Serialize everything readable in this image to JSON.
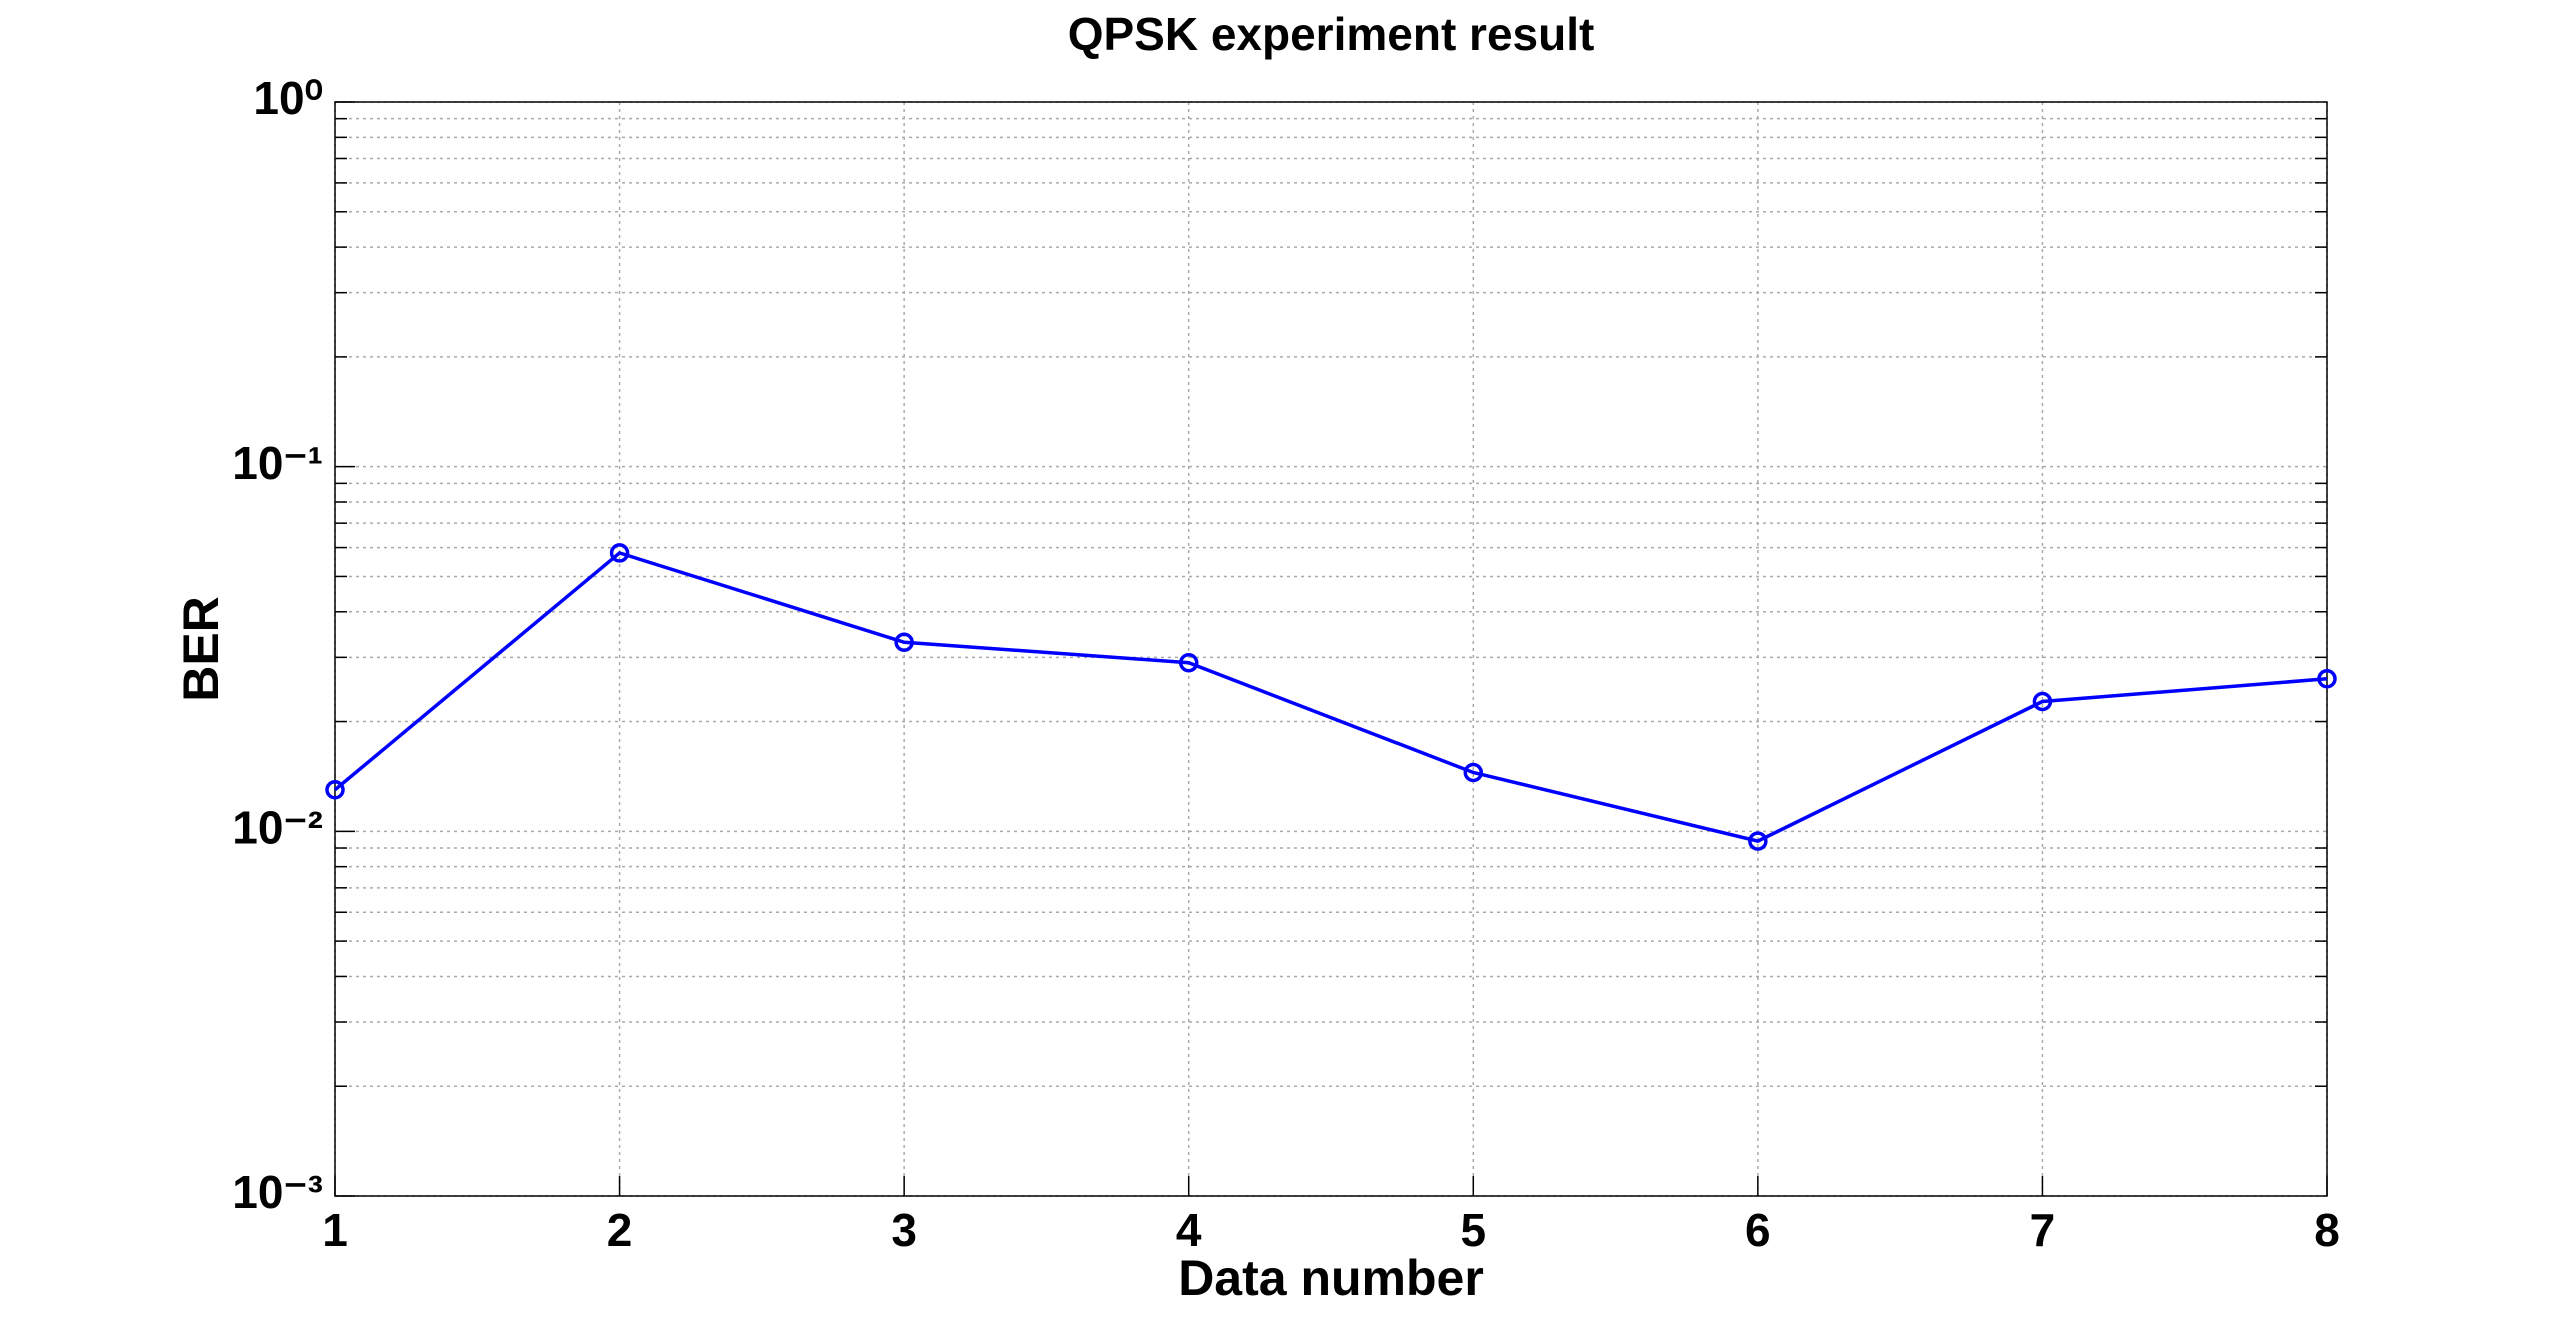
{
  "chart_data": {
    "type": "line",
    "title": "QPSK experiment result",
    "x_label": "Data number",
    "y_label": "BER",
    "x": [
      1,
      2,
      3,
      4,
      5,
      6,
      7,
      8
    ],
    "series": [
      {
        "color": "#0000ff",
        "values": [
          0.013,
          0.058,
          0.033,
          0.029,
          0.0145,
          0.0094,
          0.0227,
          0.0262
        ]
      }
    ],
    "xlim": [
      1,
      8
    ],
    "xticks": [
      1,
      2,
      3,
      4,
      5,
      6,
      7,
      8
    ],
    "ylim": [
      0.001,
      1
    ],
    "log_y": true,
    "yticks": [
      {
        "value": 0.001,
        "label": "10⁻³"
      },
      {
        "value": 0.01,
        "label": "10⁻²"
      },
      {
        "value": 0.1,
        "label": "10⁻¹"
      },
      {
        "value": 1,
        "label": "10⁰"
      }
    ],
    "grid": true,
    "marker": "circle"
  }
}
